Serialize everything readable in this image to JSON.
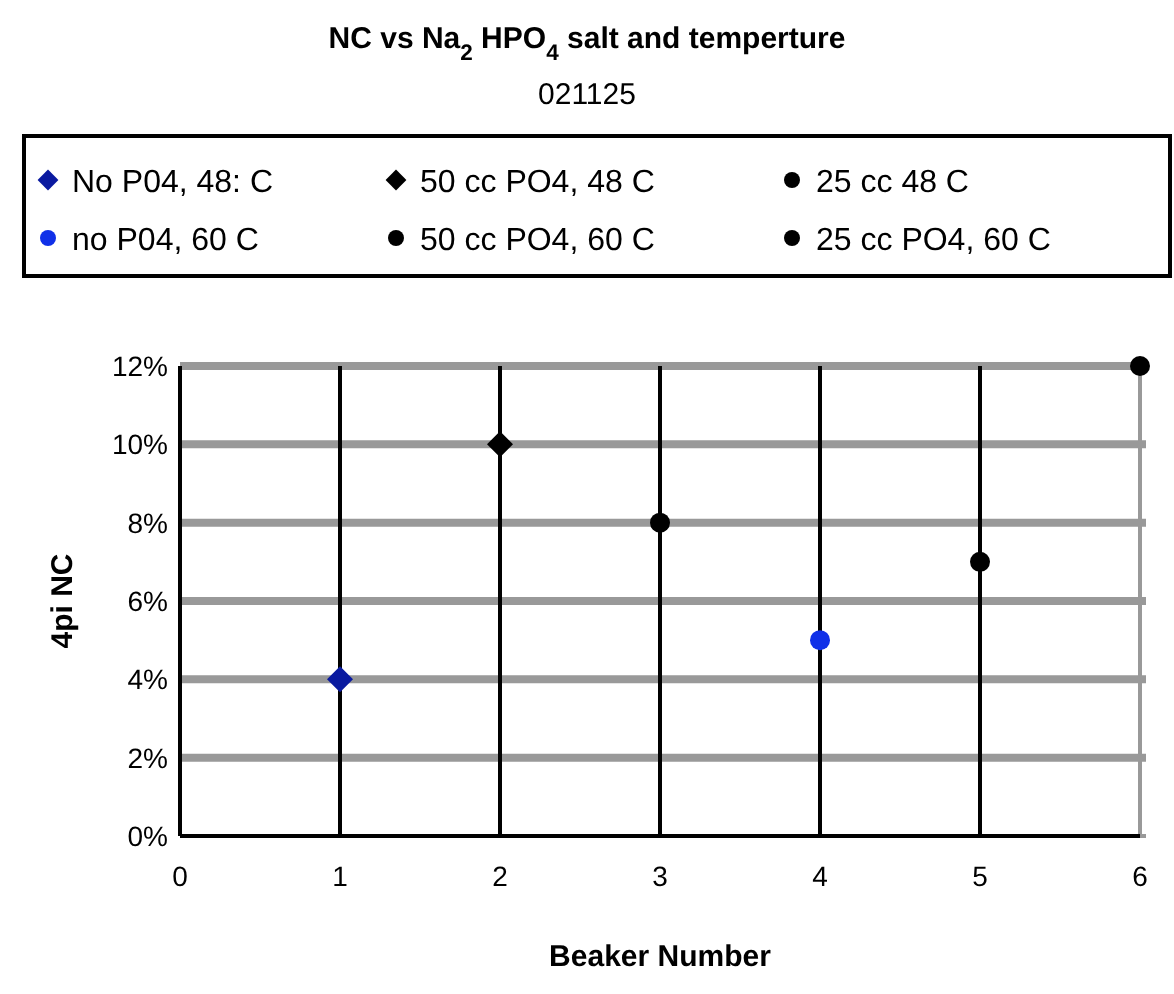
{
  "chart_data": {
    "type": "scatter",
    "title": "NC vs Na$_{2}$ HPO$_{4}$ salt and temperture",
    "subtitle": "021125",
    "xlabel": "Beaker Number",
    "ylabel": "4pi NC",
    "xlim": [
      0,
      6
    ],
    "xticks": [
      0,
      1,
      2,
      3,
      4,
      5,
      6
    ],
    "ylim": [
      0,
      12
    ],
    "yticks": [
      {
        "value": 0,
        "label": "0%"
      },
      {
        "value": 2,
        "label": "2%"
      },
      {
        "value": 4,
        "label": "4%"
      },
      {
        "value": 6,
        "label": "6%"
      },
      {
        "value": 8,
        "label": "8%"
      },
      {
        "value": 10,
        "label": "10%"
      },
      {
        "value": 12,
        "label": "12%"
      }
    ],
    "grid": true,
    "legend": "top",
    "series": [
      {
        "name": "No P04, 48: C",
        "color": "#0a1aa0",
        "marker": "diamond",
        "x": [
          1
        ],
        "values": [
          4
        ]
      },
      {
        "name": "no P04, 60 C",
        "color": "#1030e8",
        "marker": "circle",
        "x": [
          4
        ],
        "values": [
          5
        ]
      },
      {
        "name": "50 cc PO4, 48 C",
        "color": "#000000",
        "marker": "diamond",
        "x": [
          2
        ],
        "values": [
          10
        ]
      },
      {
        "name": "50 cc PO4, 60 C",
        "color": "#000000",
        "marker": "circle",
        "x": [
          5
        ],
        "values": [
          7
        ]
      },
      {
        "name": "25 cc 48 C",
        "color": "#000000",
        "marker": "circle",
        "x": [
          3
        ],
        "values": [
          8
        ]
      },
      {
        "name": "25 cc PO4, 60 C",
        "color": "#000000",
        "marker": "circle",
        "x": [
          6
        ],
        "values": [
          12
        ]
      }
    ]
  }
}
